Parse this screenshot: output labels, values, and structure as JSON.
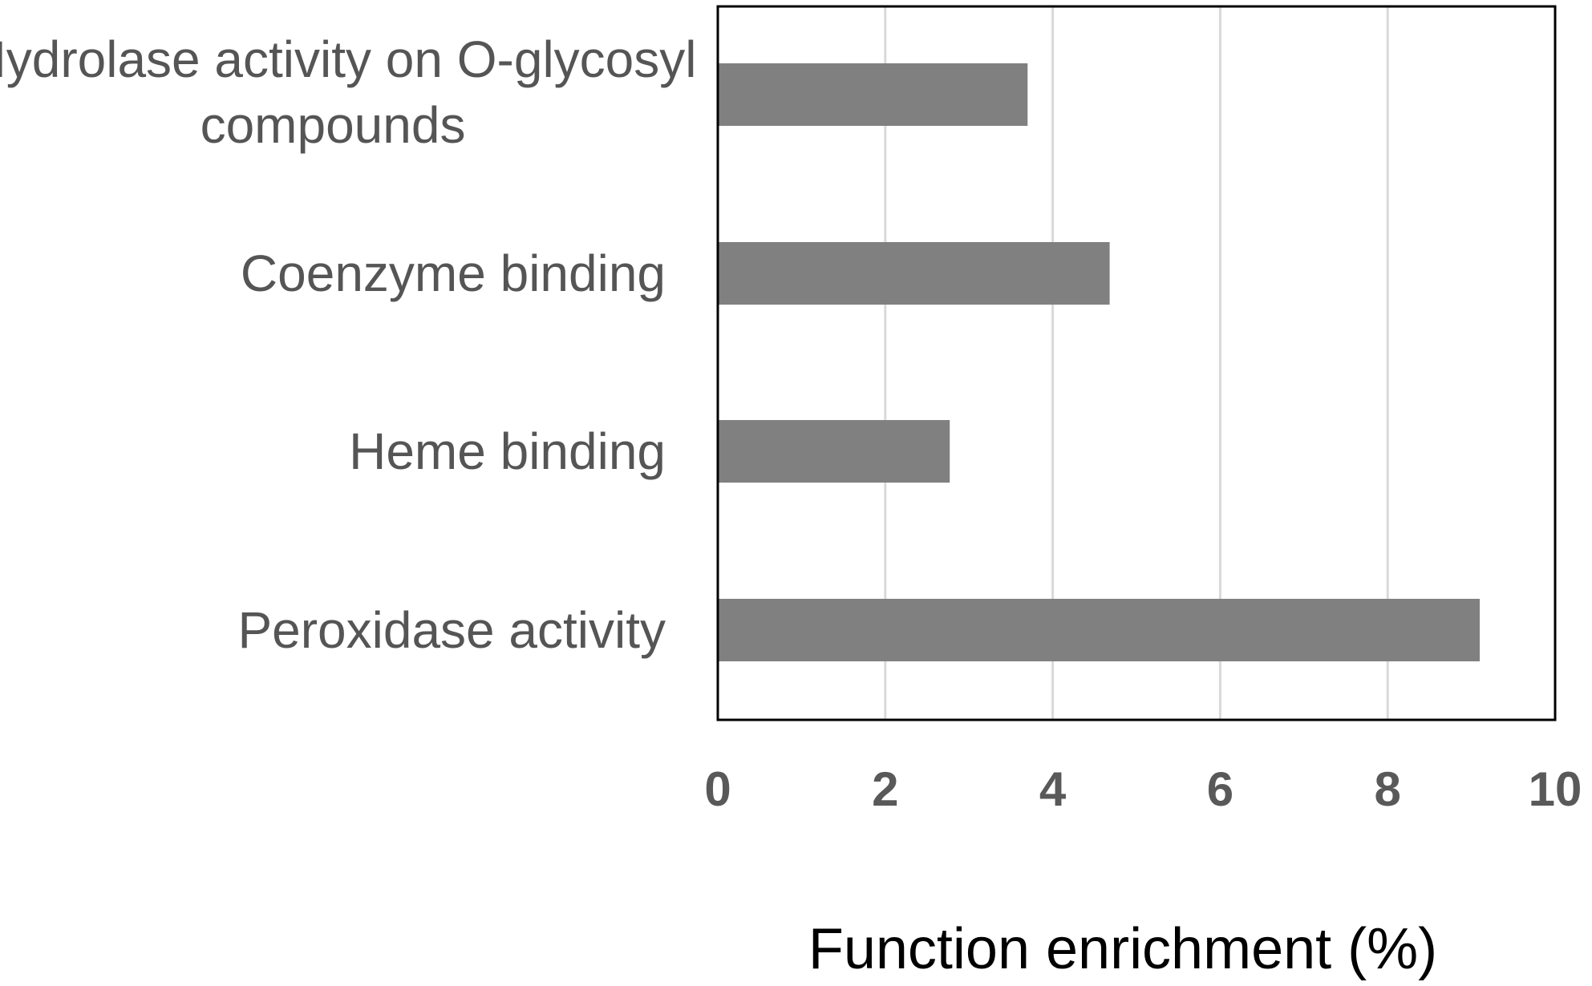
{
  "chart_data": {
    "type": "bar",
    "orientation": "horizontal",
    "categories": [
      [
        "Hydrolase activity on O-glycosyl",
        "compounds"
      ],
      [
        "Coenzyme binding"
      ],
      [
        "Heme binding"
      ],
      [
        "Peroxidase activity"
      ]
    ],
    "values": [
      3.7,
      4.68,
      2.77,
      9.1
    ],
    "xlabel": "Function enrichment (%)",
    "ylabel": "",
    "xlim": [
      0,
      10
    ],
    "xticks": [
      "0",
      "2",
      "4",
      "6",
      "8",
      "10"
    ],
    "grid": "vertical",
    "legend": "none",
    "bar_color": "#808080",
    "grid_color": "#d9d9d9",
    "frame_color": "#000000"
  }
}
